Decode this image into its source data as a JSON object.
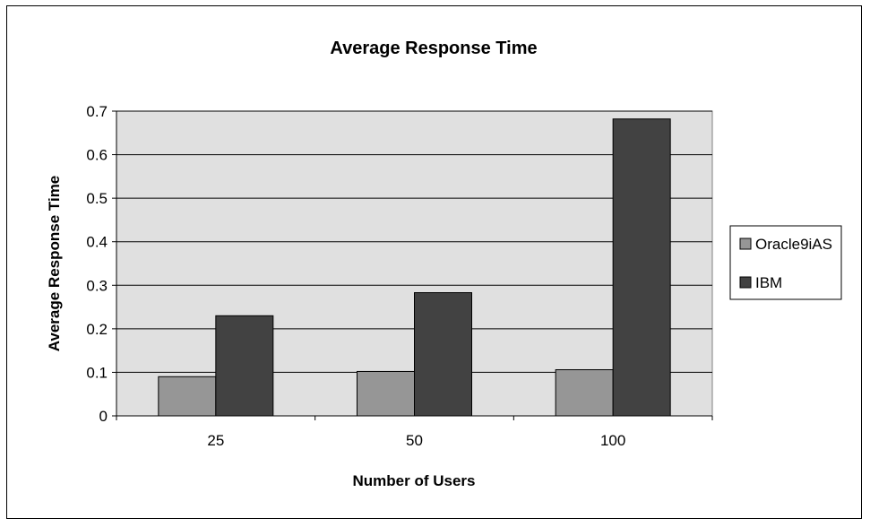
{
  "chart_data": {
    "type": "bar",
    "title": "Average Response Time",
    "xlabel": "Number of Users",
    "ylabel": "Average Response Time",
    "categories": [
      "25",
      "50",
      "100"
    ],
    "series": [
      {
        "name": "Oracle9iAS",
        "values": [
          0.09,
          0.102,
          0.106
        ],
        "color": "#969696"
      },
      {
        "name": "IBM",
        "values": [
          0.23,
          0.283,
          0.682
        ],
        "color": "#424242"
      }
    ],
    "ylim": [
      0,
      0.7
    ],
    "yticks": [
      "0",
      "0.1",
      "0.2",
      "0.3",
      "0.4",
      "0.5",
      "0.6",
      "0.7"
    ],
    "grid": true,
    "plot_background": "#e0e0e0",
    "legend_position": "right"
  }
}
